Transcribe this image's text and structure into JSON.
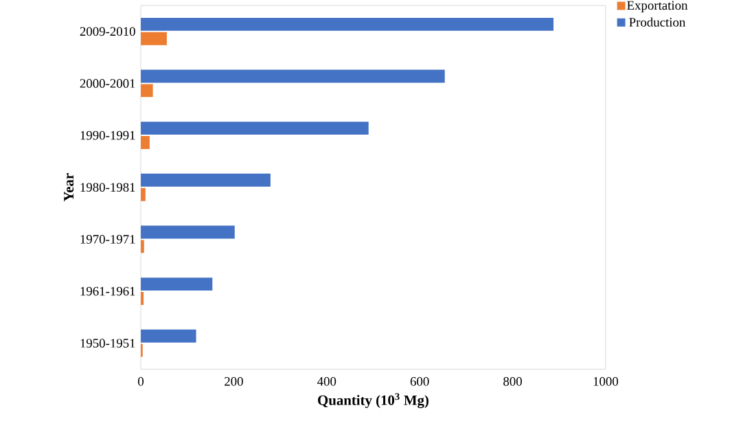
{
  "chart_data": {
    "type": "bar",
    "orientation": "horizontal",
    "categories": [
      "2009-2010",
      "2000-2001",
      "1990-1991",
      "1980-1981",
      "1970-1971",
      "1961-1961",
      "1950-1951"
    ],
    "series": [
      {
        "name": "Exportation",
        "color": "#ed7d31",
        "values": [
          56,
          26,
          19,
          10,
          7,
          6,
          4
        ]
      },
      {
        "name": "Production",
        "color": "#4472c4",
        "values": [
          888,
          654,
          490,
          279,
          202,
          154,
          119
        ]
      }
    ],
    "xlim": [
      0,
      1000
    ],
    "xticks": [
      0,
      200,
      400,
      600,
      800,
      1000
    ],
    "xlabel": "Quantity (10$^{3}$ Mg)",
    "ylabel": "Year",
    "legend": "top right"
  }
}
